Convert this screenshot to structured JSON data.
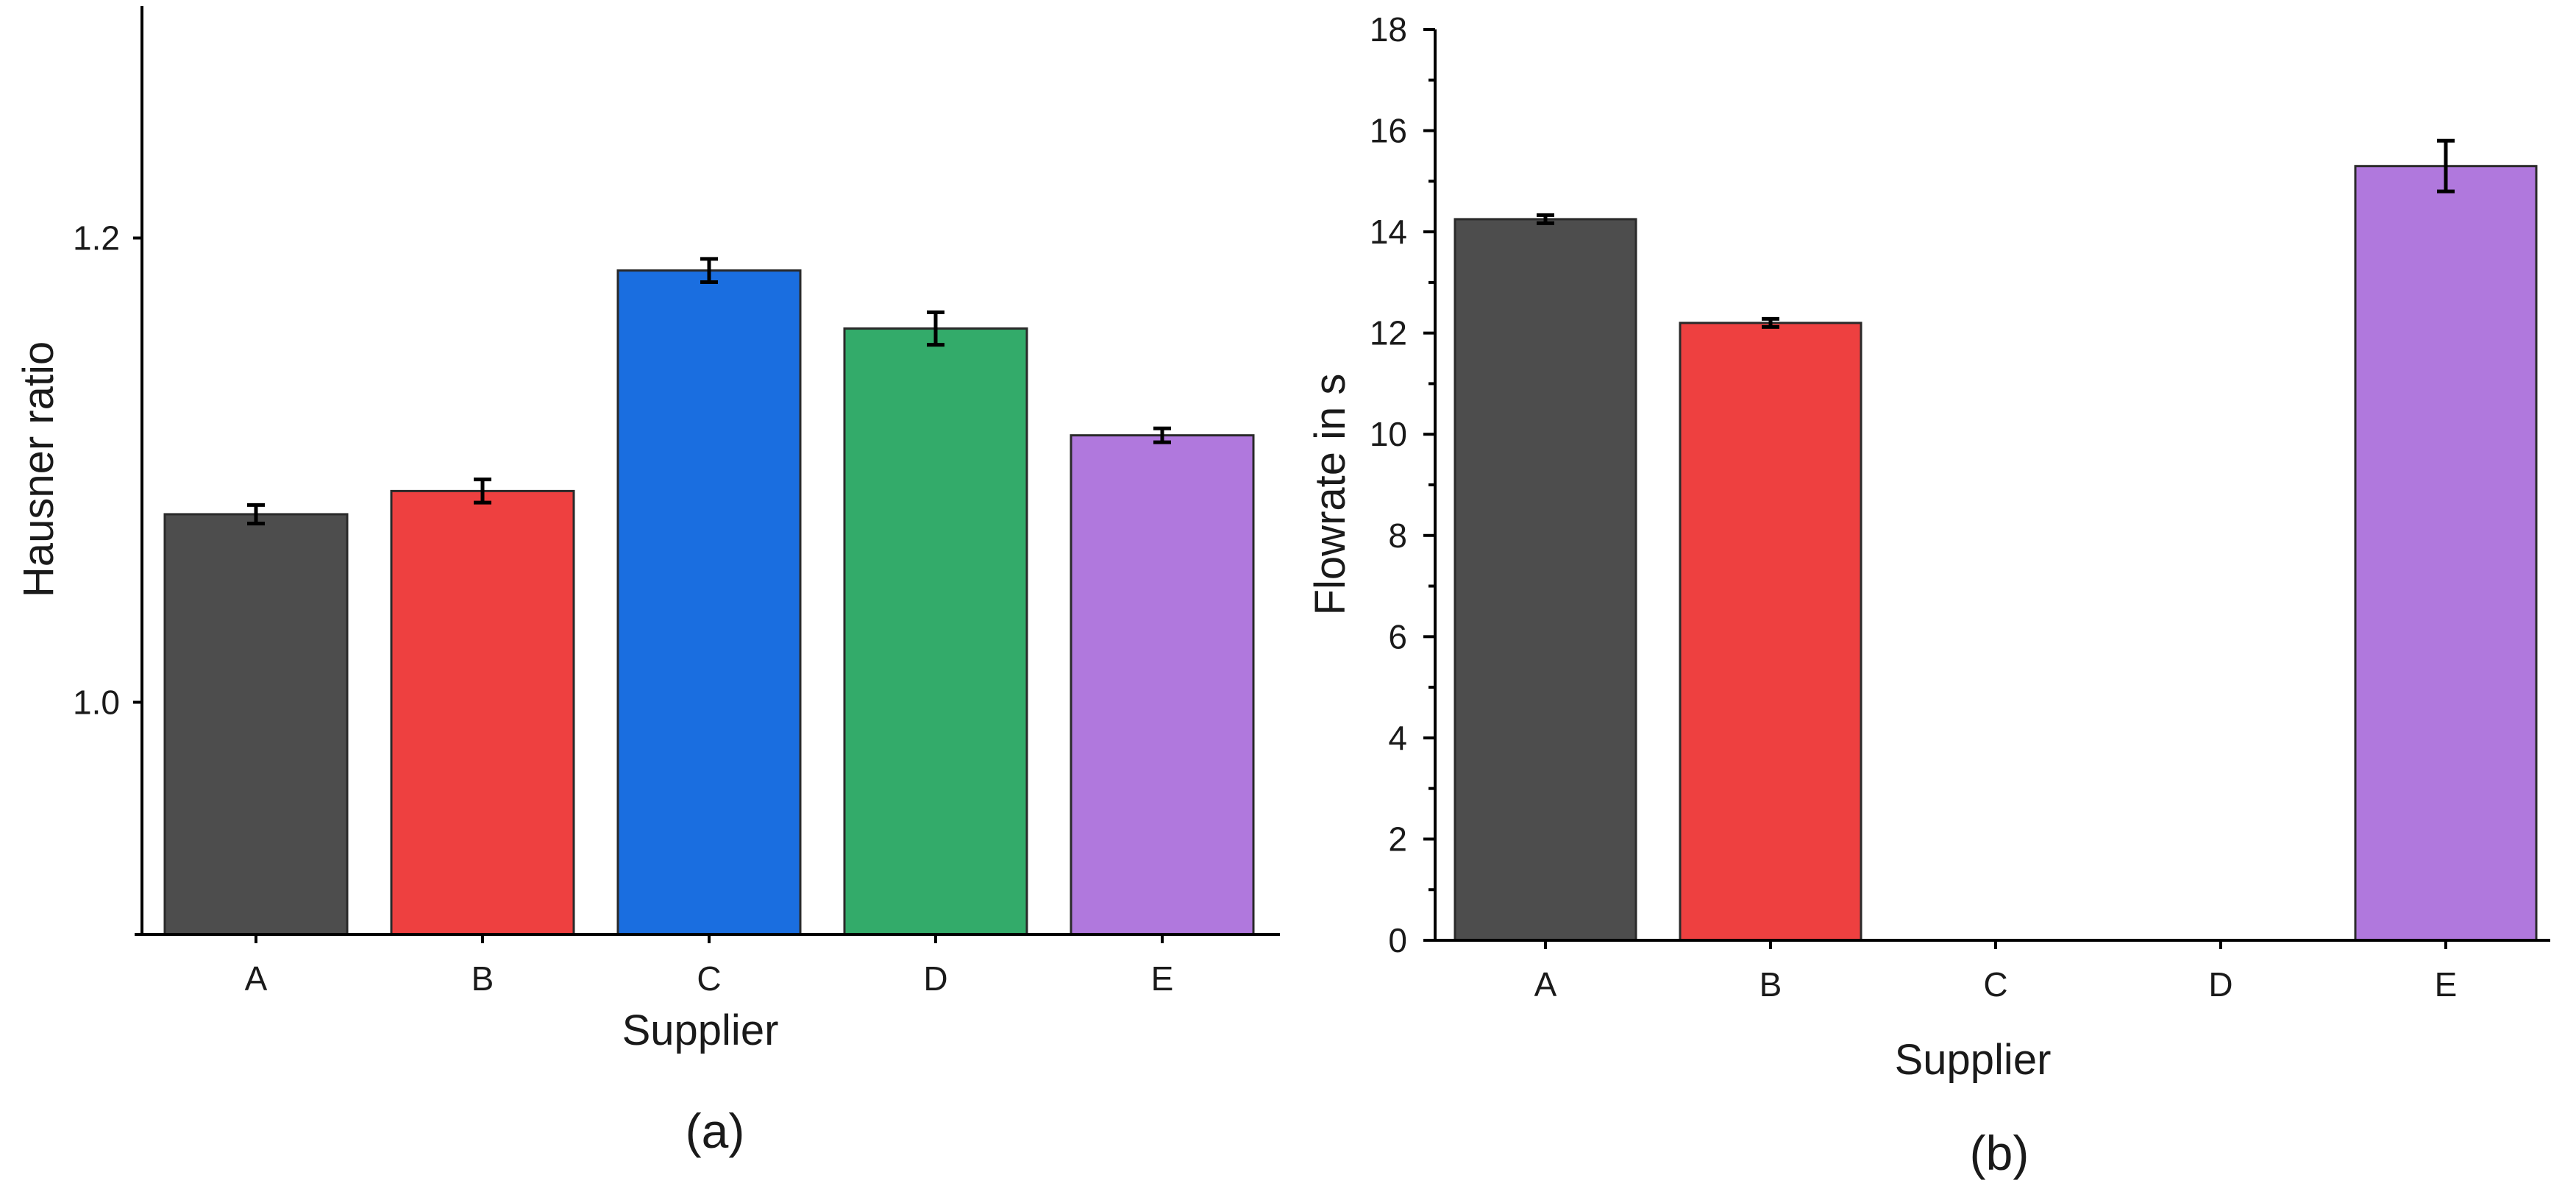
{
  "figure": {
    "panels": [
      "(a)",
      "(b)"
    ]
  },
  "colors": {
    "A": "#4d4d4d",
    "B": "#ee4040",
    "C": "#1a6ee0",
    "D": "#33ab6a",
    "E": "#b078dd"
  },
  "chart_data": [
    {
      "type": "bar",
      "panel_label": "(a)",
      "title": "",
      "xlabel": "Supplier",
      "ylabel": "Hausner ratio",
      "categories": [
        "A",
        "B",
        "C",
        "D",
        "E"
      ],
      "values": [
        1.081,
        1.091,
        1.186,
        1.161,
        1.115
      ],
      "errors": [
        0.004,
        0.005,
        0.005,
        0.007,
        0.003
      ],
      "ylim": [
        0.9,
        1.3
      ],
      "yticks": [
        1.0,
        1.2
      ],
      "ytick_labels": [
        "1.0",
        "1.2"
      ],
      "grid": false,
      "colors": [
        "#4d4d4d",
        "#ee4040",
        "#1a6ee0",
        "#33ab6a",
        "#b078dd"
      ]
    },
    {
      "type": "bar",
      "panel_label": "(b)",
      "title": "",
      "xlabel": "Supplier",
      "ylabel": "Flowrate in s",
      "categories": [
        "A",
        "B",
        "C",
        "D",
        "E"
      ],
      "values": [
        14.25,
        12.2,
        0,
        0,
        15.3
      ],
      "errors": [
        0.08,
        0.08,
        0,
        0,
        0.5
      ],
      "ylim": [
        0,
        18
      ],
      "yticks": [
        0,
        2,
        4,
        6,
        8,
        10,
        12,
        14,
        16,
        18
      ],
      "ytick_labels": [
        "0",
        "2",
        "4",
        "6",
        "8",
        "10",
        "12",
        "14",
        "16",
        "18"
      ],
      "grid": false,
      "colors": [
        "#4d4d4d",
        "#ee4040",
        "#1a6ee0",
        "#33ab6a",
        "#b078dd"
      ]
    }
  ]
}
